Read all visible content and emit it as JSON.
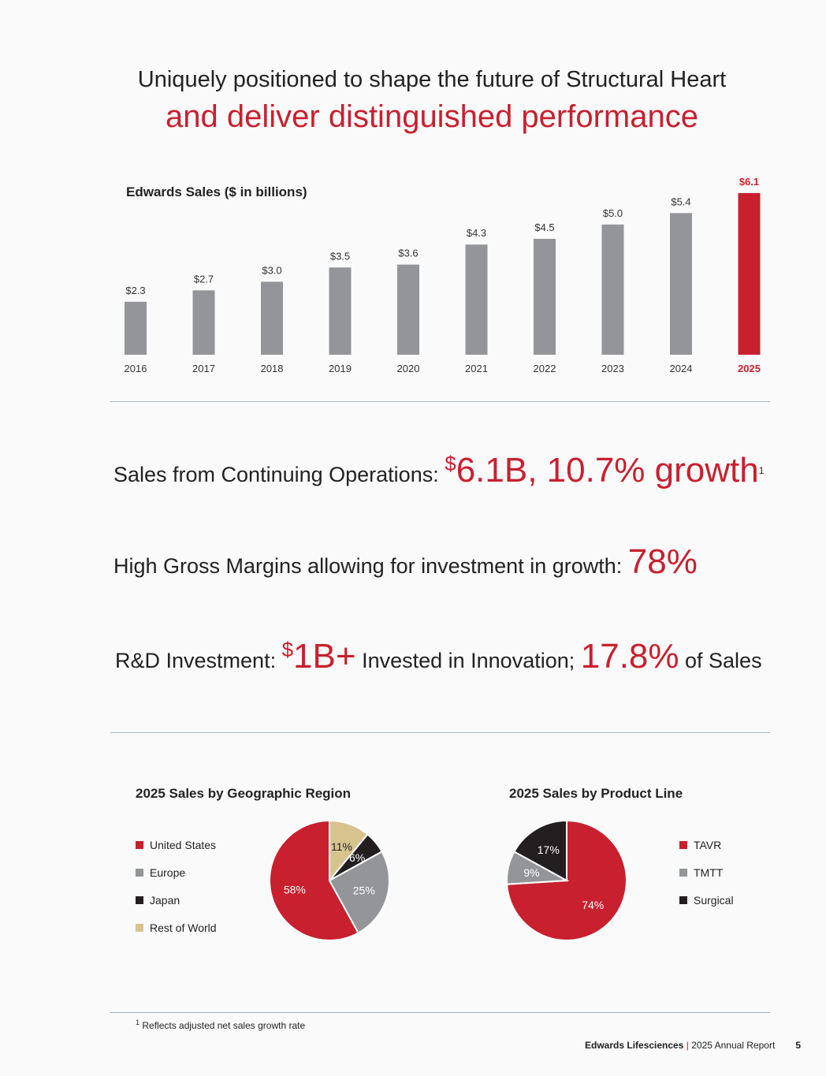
{
  "heading": {
    "line1": "Uniquely positioned to shape the future of Structural Heart",
    "line2": "and deliver distinguished performance"
  },
  "chart_data": [
    {
      "type": "bar",
      "title": "Edwards Sales ($ in billions)",
      "categories": [
        "2016",
        "2017",
        "2018",
        "2019",
        "2020",
        "2021",
        "2022",
        "2023",
        "2024",
        "2025"
      ],
      "values": [
        2.3,
        2.7,
        3.0,
        3.5,
        3.6,
        4.3,
        4.5,
        5.0,
        5.4,
        6.1
      ],
      "labels": [
        "$2.3",
        "$2.7",
        "$3.0",
        "$3.5",
        "$3.6",
        "$4.3",
        "$4.5",
        "$5.0",
        "$5.4",
        "$6.1"
      ],
      "highlight": "2025",
      "colors": {
        "bar": "#939598",
        "highlight": "#c8202f"
      }
    },
    {
      "type": "pie",
      "title": "2025 Sales by Geographic Region",
      "slices": [
        {
          "name": "Rest of World",
          "value": 11,
          "label": "11%",
          "color": "#d8c38f"
        },
        {
          "name": "Japan",
          "value": 6,
          "label": "6%",
          "color": "#231f20"
        },
        {
          "name": "Europe",
          "value": 25,
          "label": "25%",
          "color": "#939598"
        },
        {
          "name": "United States",
          "value": 58,
          "label": "58%",
          "color": "#c8202f"
        }
      ],
      "legend": [
        "United States",
        "Europe",
        "Japan",
        "Rest of World"
      ]
    },
    {
      "type": "pie",
      "title": "2025 Sales by Product Line",
      "slices": [
        {
          "name": "TAVR",
          "value": 74,
          "label": "74%",
          "color": "#c8202f"
        },
        {
          "name": "TMTT",
          "value": 9,
          "label": "9%",
          "color": "#939598"
        },
        {
          "name": "Surgical",
          "value": 17,
          "label": "17%",
          "color": "#231f20"
        }
      ],
      "legend": [
        "TAVR",
        "TMTT",
        "Surgical"
      ]
    }
  ],
  "stats": {
    "s1": {
      "a": "Sales from Continuing Operations: ",
      "cur": "$",
      "b": "6.1B, 10.7% growth",
      "fn": "1"
    },
    "s2": {
      "a": "High Gross Margins allowing for investment in growth: ",
      "b": "78%"
    },
    "s3": {
      "a": "R&D Investment: ",
      "cur": "$",
      "b": "1B+",
      "c": " Invested in Innovation; ",
      "d": "17.8%",
      "e": " of Sales"
    }
  },
  "footnote": {
    "num": "1",
    "text": "Reflects adjusted net sales growth rate"
  },
  "footer": {
    "company": "Edwards Lifesciences",
    "sep": "|",
    "report": "2025 Annual Report",
    "page": "5"
  }
}
